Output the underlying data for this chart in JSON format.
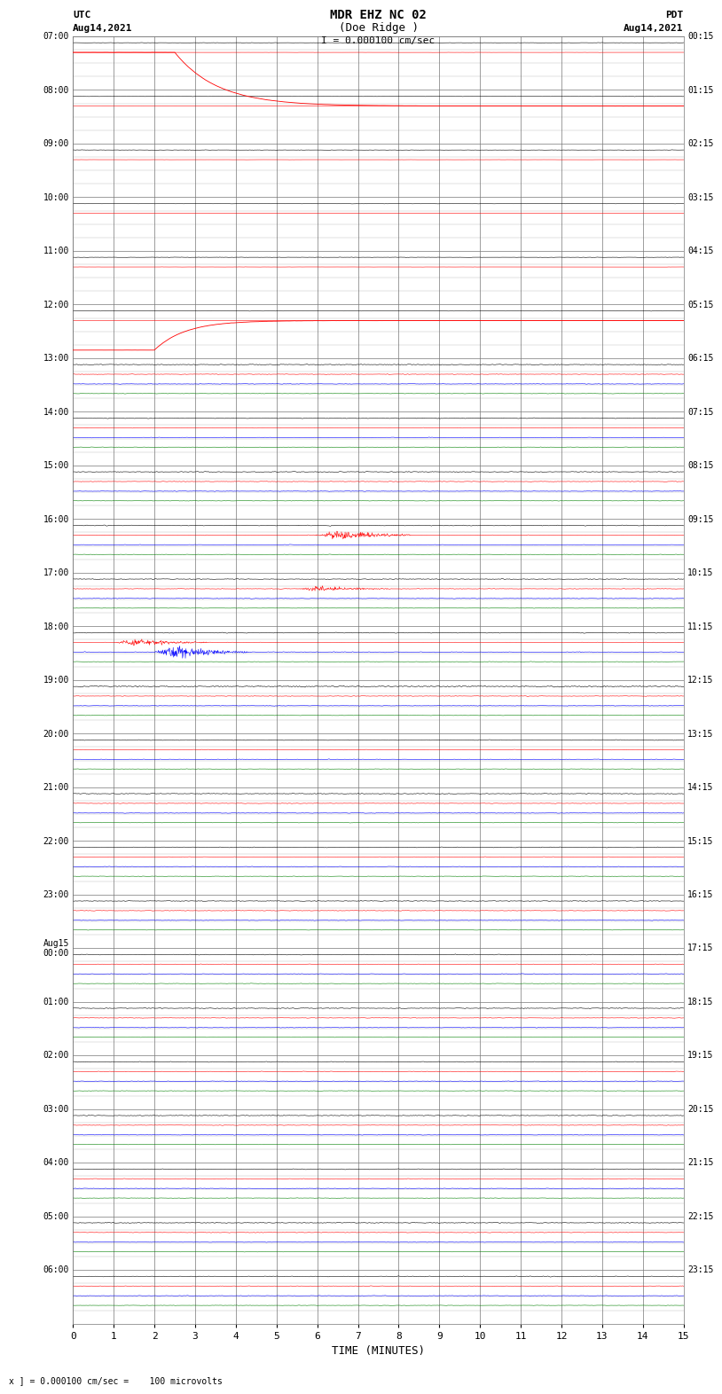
{
  "title_line1": "MDR EHZ NC 02",
  "title_line2": "(Doe Ridge )",
  "scale_label": "I = 0.000100 cm/sec",
  "bottom_note": "x ] = 0.000100 cm/sec =    100 microvolts",
  "xlabel": "TIME (MINUTES)",
  "left_times_utc": [
    "07:00",
    "08:00",
    "09:00",
    "10:00",
    "11:00",
    "12:00",
    "13:00",
    "14:00",
    "15:00",
    "16:00",
    "17:00",
    "18:00",
    "19:00",
    "20:00",
    "21:00",
    "22:00",
    "23:00",
    "Aug15\n00:00",
    "01:00",
    "02:00",
    "03:00",
    "04:00",
    "05:00",
    "06:00"
  ],
  "right_times_pdt": [
    "00:15",
    "01:15",
    "02:15",
    "03:15",
    "04:15",
    "05:15",
    "06:15",
    "07:15",
    "08:15",
    "09:15",
    "10:15",
    "11:15",
    "12:15",
    "13:15",
    "14:15",
    "15:15",
    "16:15",
    "17:15",
    "18:15",
    "19:15",
    "20:15",
    "21:15",
    "22:15",
    "23:15"
  ],
  "n_rows": 24,
  "n_minutes": 15,
  "bg_color": "#ffffff",
  "grid_color": "#777777",
  "trace_colors_active": [
    "black",
    "red",
    "blue",
    "green"
  ],
  "fig_width": 8.5,
  "fig_height": 16.13
}
